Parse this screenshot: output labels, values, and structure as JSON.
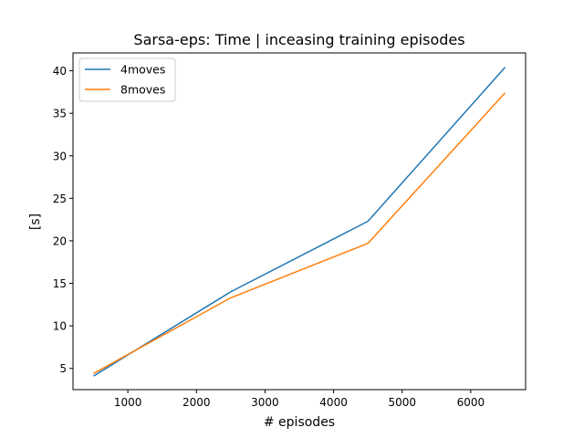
{
  "chart_data": {
    "type": "line",
    "title": "Sarsa-eps: Time | inceasing training episodes",
    "xlabel": "# episodes",
    "ylabel": "[s]",
    "x": [
      500,
      2500,
      4500,
      6500
    ],
    "xlim": [
      200,
      6800
    ],
    "ylim": [
      2.5,
      42.1
    ],
    "xticks": [
      1000,
      2000,
      3000,
      4000,
      5000,
      6000
    ],
    "yticks": [
      5,
      10,
      15,
      20,
      25,
      30,
      35,
      40
    ],
    "grid": false,
    "legend_position": "upper-left",
    "series": [
      {
        "name": "4moves",
        "color": "#1f77b4",
        "values": [
          4.1,
          14.0,
          22.3,
          40.4
        ]
      },
      {
        "name": "8moves",
        "color": "#ff7f0e",
        "values": [
          4.4,
          13.3,
          19.7,
          37.4
        ]
      }
    ]
  }
}
